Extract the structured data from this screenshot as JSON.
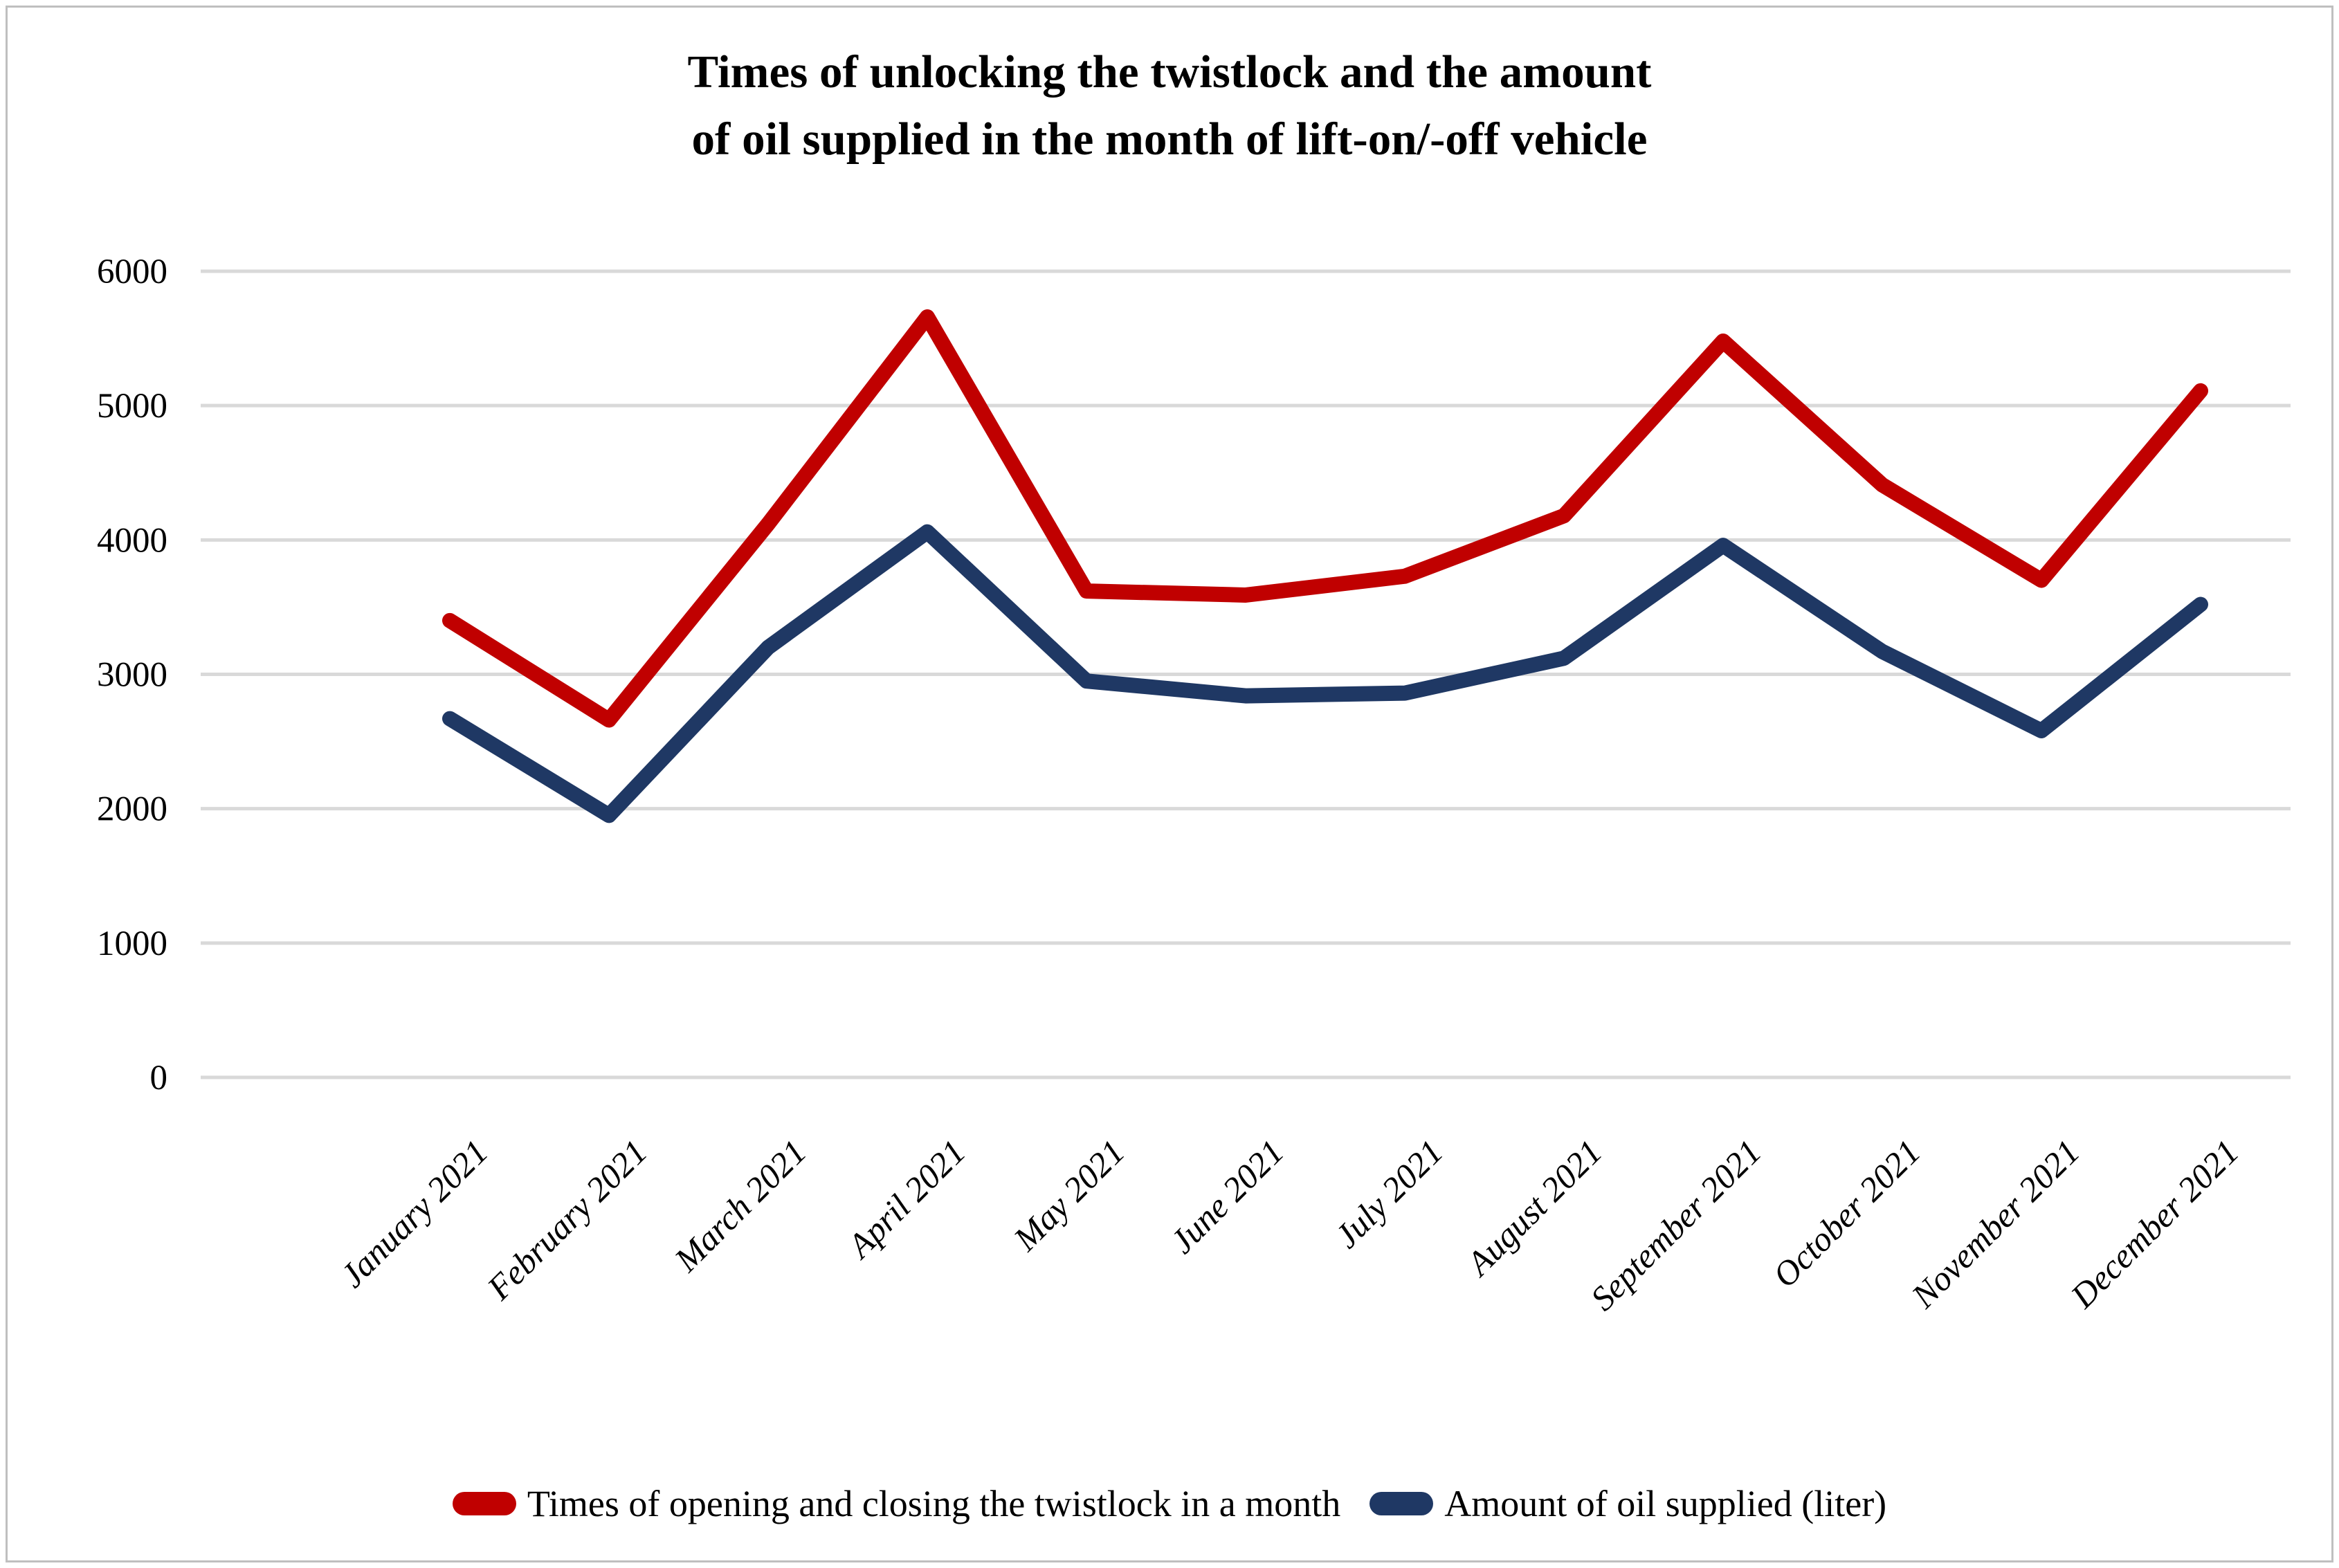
{
  "figure": {
    "title_line1": "Times of unlocking the twistlock and the amount",
    "title_line2": "of oil supplied in the month of lift-on/-off vehicle"
  },
  "chart_data": {
    "type": "line",
    "title": "Times of unlocking the twistlock and the amount of oil supplied in the month of lift-on/-off vehicle",
    "categories": [
      "January 2021",
      "February 2021",
      "March 2021",
      "April 2021",
      "May 2021",
      "June 2021",
      "July 2021",
      "August 2021",
      "September 2021",
      "October 2021",
      "November 2021",
      "December 2021"
    ],
    "series": [
      {
        "name": "Times of opening and closing the twistlock in a month",
        "color": "#c00000",
        "values": [
          3400,
          2660,
          4120,
          5660,
          3620,
          3590,
          3730,
          4180,
          5480,
          4410,
          3700,
          5110
        ]
      },
      {
        "name": "Amount of oil supplied (liter)",
        "color": "#1f3864",
        "values": [
          2670,
          1950,
          3200,
          4060,
          2950,
          2840,
          2860,
          3120,
          3960,
          3170,
          2580,
          3520
        ]
      }
    ],
    "xlabel": "",
    "ylabel": "",
    "ylim": [
      0,
      6000
    ],
    "yticks": [
      0,
      1000,
      2000,
      3000,
      4000,
      5000,
      6000
    ],
    "grid": "horizontal",
    "gridline_color": "#d9d9d9",
    "legend_position": "bottom",
    "x_tick_rotation": 45
  }
}
